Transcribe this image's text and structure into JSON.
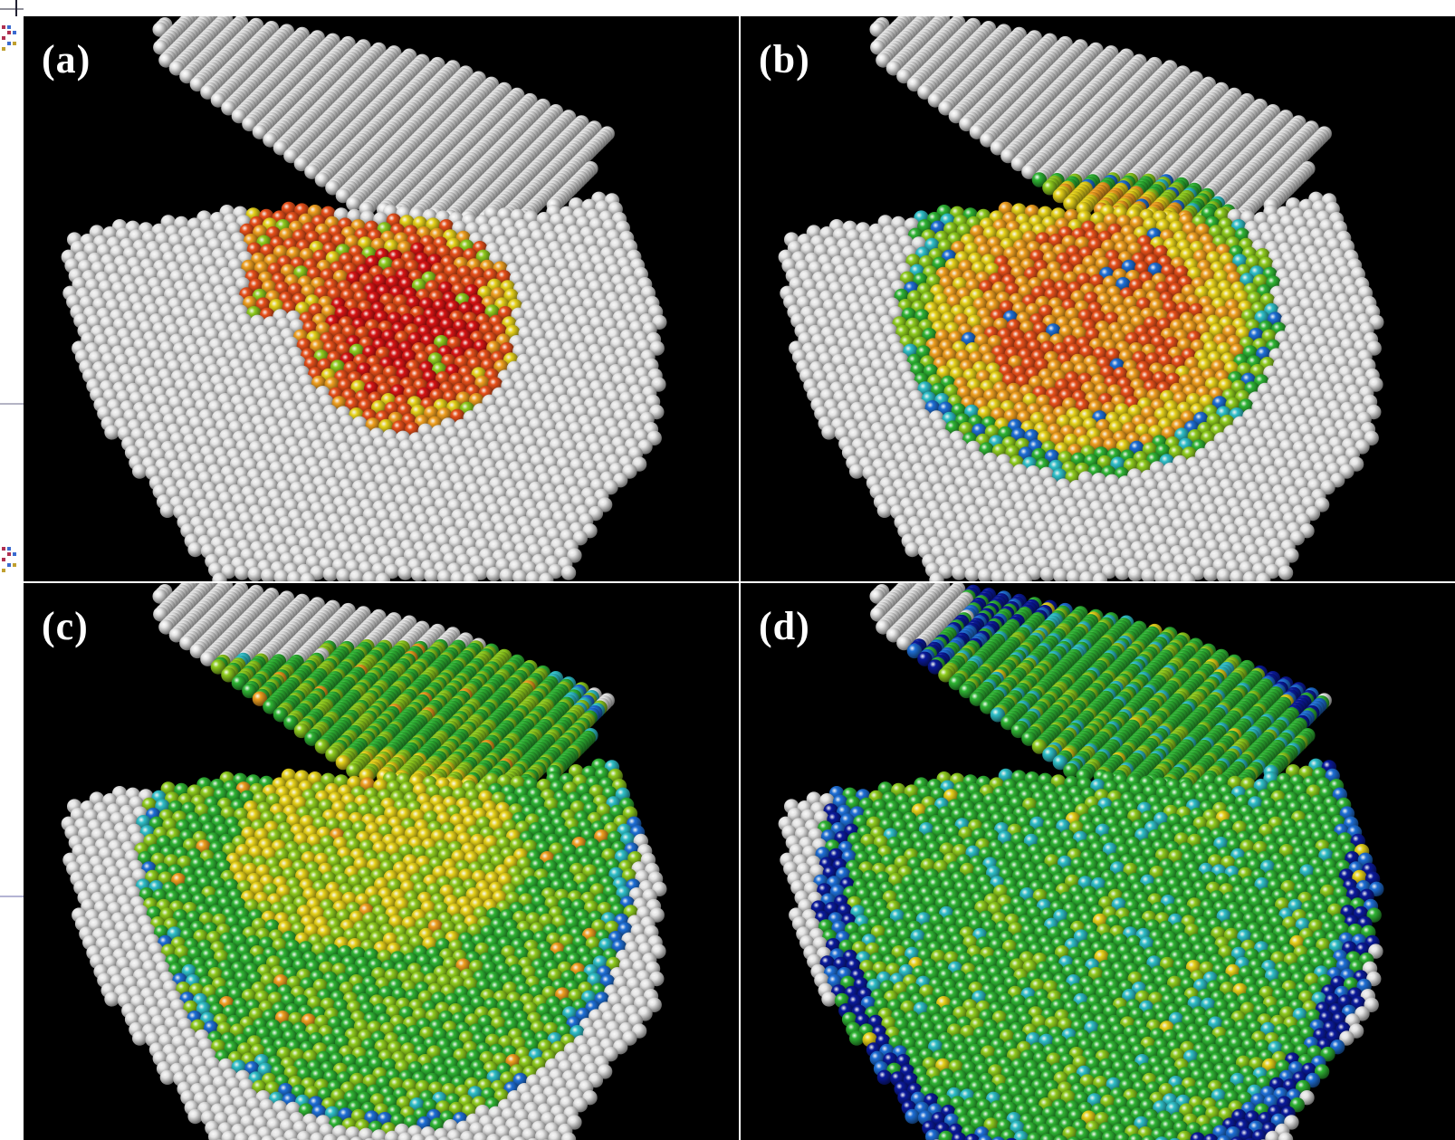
{
  "figure": {
    "panels": [
      {
        "label": "(a)",
        "stage": 0
      },
      {
        "label": "(b)",
        "stage": 1
      },
      {
        "label": "(c)",
        "stage": 2
      },
      {
        "label": "(d)",
        "stage": 3
      }
    ]
  },
  "colors": {
    "background": "#000000",
    "divider": "#ffffff",
    "atom_neutral": "#e6e6e6",
    "scale": [
      "#0a1a9c",
      "#1e6fd6",
      "#2fbfc8",
      "#2fb534",
      "#8fcc1e",
      "#e6d21a",
      "#f0a020",
      "#e8501a",
      "#d81414"
    ]
  }
}
